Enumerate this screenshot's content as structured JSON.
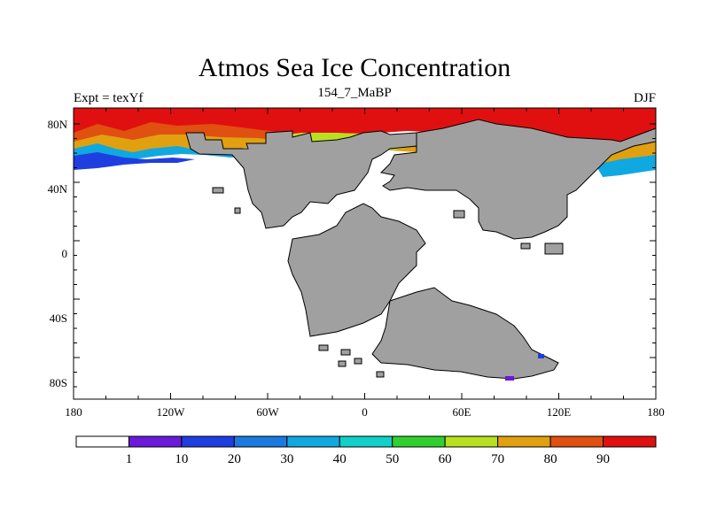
{
  "title": "Atmos Sea Ice Concentration",
  "left_string": "Expt = texYf",
  "center_string": "154_7_MaBP",
  "right_string": "DJF",
  "map": {
    "x_ticks": [
      "180",
      "120W",
      "60W",
      "0",
      "60E",
      "120E",
      "180"
    ],
    "y_ticks": [
      "80N",
      "40N",
      "0",
      "40S",
      "80S"
    ],
    "land_color": "#a0a0a0",
    "ocean_color": "#ffffff"
  },
  "colorbar": {
    "labels": [
      "1",
      "10",
      "20",
      "30",
      "40",
      "50",
      "60",
      "70",
      "80",
      "90"
    ],
    "colors": [
      "#ffffff",
      "#6a1ad8",
      "#1f3ee0",
      "#1a7ae0",
      "#10a8e0",
      "#10d0c8",
      "#30d030",
      "#b8e020",
      "#e0a010",
      "#e05010",
      "#e01010"
    ]
  }
}
